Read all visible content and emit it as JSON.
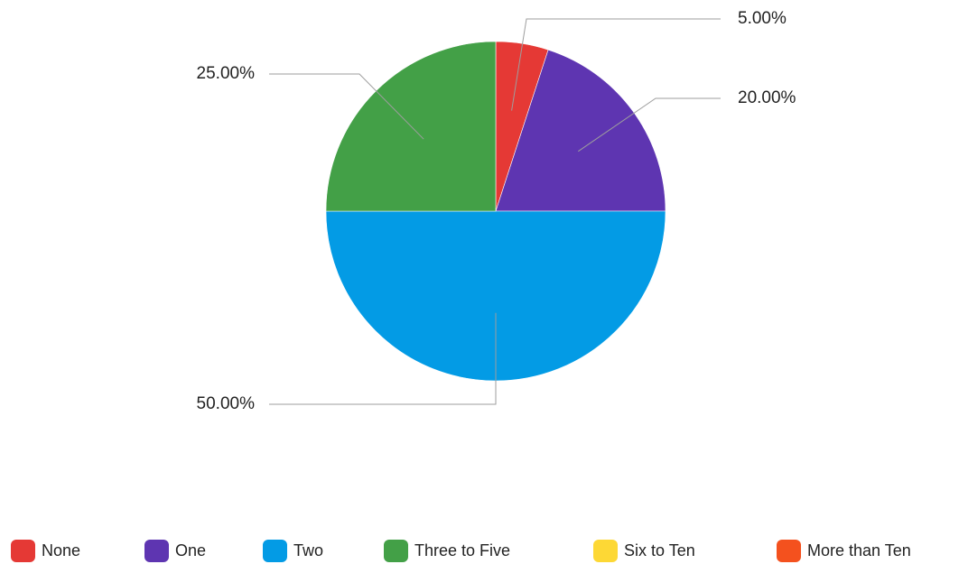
{
  "chart_data": {
    "type": "pie",
    "title": "",
    "categories": [
      "None",
      "One",
      "Two",
      "Three to Five",
      "Six to Ten",
      "More than Ten"
    ],
    "values": [
      5,
      20,
      50,
      25,
      0,
      0
    ],
    "value_labels": [
      "5.00%",
      "20.00%",
      "50.00%",
      "25.00%",
      "",
      ""
    ],
    "unit": "%",
    "colors": [
      "#e53935",
      "#5e35b1",
      "#039be5",
      "#43a047",
      "#fdd835",
      "#f4511e"
    ],
    "legend_position": "bottom"
  }
}
